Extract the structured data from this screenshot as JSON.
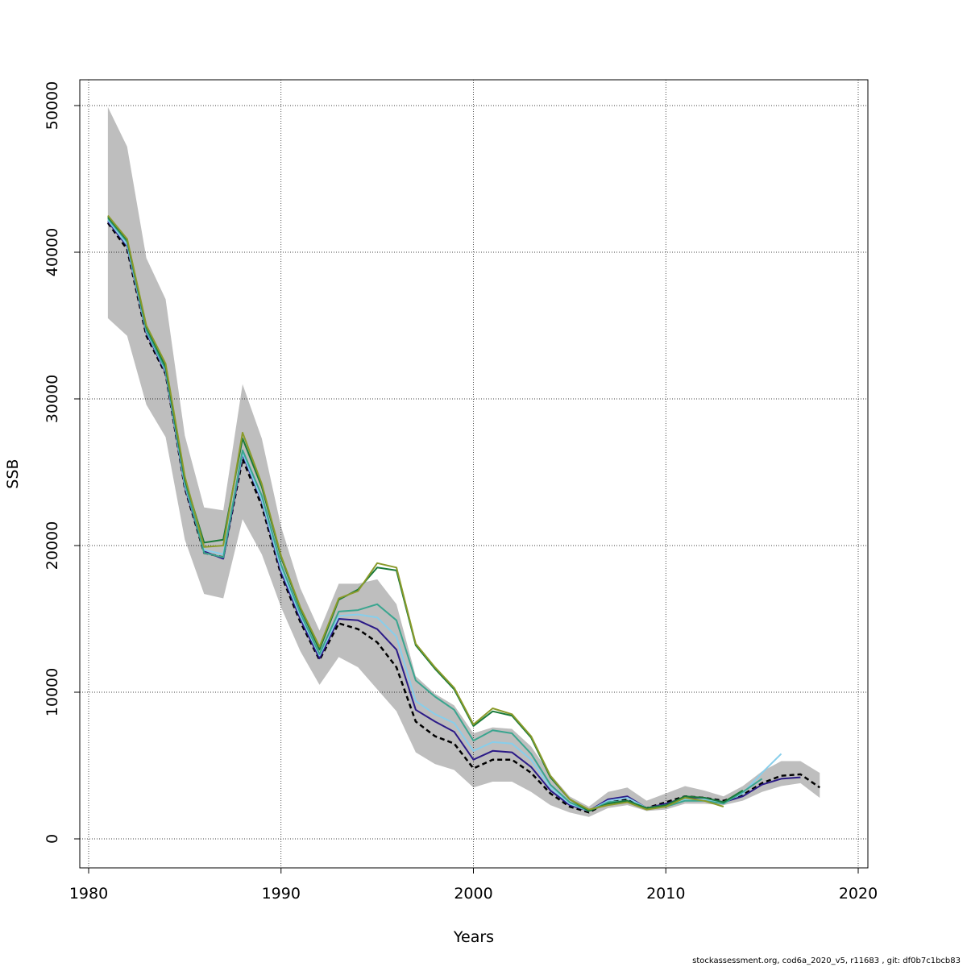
{
  "footer": "stockassessment.org, cod6a_2020_v5, r11683 , git: df0b7c1bcb83",
  "chart_data": {
    "type": "line",
    "title": "",
    "xlabel": "Years",
    "ylabel": "SSB",
    "xlim": [
      1980,
      2020
    ],
    "ylim": [
      0,
      50000
    ],
    "x_ticks": [
      1980,
      1990,
      2000,
      2010,
      2020
    ],
    "y_ticks": [
      0,
      10000,
      20000,
      30000,
      40000,
      50000
    ],
    "x_tick_labels": [
      "1980",
      "1990",
      "2000",
      "2010",
      "2020"
    ],
    "y_tick_labels": [
      "0",
      "10000",
      "20000",
      "30000",
      "40000",
      "50000"
    ],
    "grid": true,
    "legend": "none",
    "confidence_band": {
      "x": [
        1981,
        1982,
        1983,
        1984,
        1985,
        1986,
        1987,
        1988,
        1989,
        1990,
        1991,
        1992,
        1993,
        1994,
        1995,
        1996,
        1997,
        1998,
        1999,
        2000,
        2001,
        2002,
        2003,
        2004,
        2005,
        2006,
        2007,
        2008,
        2009,
        2010,
        2011,
        2012,
        2013,
        2014,
        2015,
        2016,
        2017,
        2018
      ],
      "lower": [
        35500,
        34300,
        29600,
        27400,
        20400,
        16700,
        16400,
        21800,
        19400,
        15800,
        12800,
        10500,
        12400,
        11700,
        10200,
        8700,
        5900,
        5100,
        4700,
        3500,
        3900,
        3900,
        3200,
        2300,
        1800,
        1500,
        2100,
        2300,
        1900,
        2000,
        2400,
        2400,
        2300,
        2600,
        3200,
        3600,
        3800,
        2800
      ],
      "upper": [
        49900,
        47200,
        39600,
        36800,
        27500,
        22600,
        22400,
        31000,
        27300,
        21300,
        17100,
        14200,
        17400,
        17400,
        17700,
        16000,
        11100,
        9900,
        9100,
        7200,
        7600,
        7500,
        6300,
        4400,
        2900,
        2200,
        3200,
        3500,
        2600,
        3100,
        3600,
        3300,
        2900,
        3600,
        4600,
        5300,
        5300,
        4500
      ],
      "color": "#bebebe"
    },
    "series": [
      {
        "x": [
          1981,
          1982,
          1983,
          1984,
          1985,
          1986,
          1987,
          1988,
          1989,
          1990,
          1991,
          1992,
          1993,
          1994,
          1995,
          1996,
          1997,
          1998,
          1999,
          2000,
          2001,
          2002,
          2003,
          2004,
          2005,
          2006,
          2007,
          2008,
          2009,
          2010,
          2011,
          2012,
          2013,
          2014,
          2015,
          2016,
          2017,
          2018
        ],
        "values": [
          42000,
          40200,
          34300,
          31700,
          23900,
          19500,
          19200,
          25900,
          22700,
          18000,
          14800,
          12200,
          14700,
          14300,
          13400,
          11700,
          8000,
          7000,
          6500,
          4800,
          5400,
          5400,
          4500,
          3100,
          2200,
          1800,
          2500,
          2700,
          2100,
          2500,
          2900,
          2800,
          2600,
          3000,
          3800,
          4300,
          4400,
          3500
        ],
        "color": "#000000",
        "dash": "6,4",
        "width": 2.5
      },
      {
        "x": [
          1981,
          1982,
          1983,
          1984,
          1985,
          1986,
          1987,
          1988,
          1989,
          1990,
          1991,
          1992,
          1993,
          1994,
          1995,
          1996,
          1997,
          1998,
          1999,
          2000,
          2001,
          2002,
          2003,
          2004,
          2005,
          2006,
          2007,
          2008,
          2009,
          2010,
          2011,
          2012,
          2013,
          2014,
          2015,
          2016,
          2017
        ],
        "values": [
          42100,
          40400,
          34500,
          31800,
          24000,
          19600,
          19100,
          26200,
          23000,
          18200,
          15000,
          12300,
          15000,
          14900,
          14300,
          12900,
          8800,
          8000,
          7300,
          5400,
          6000,
          5900,
          4900,
          3300,
          2300,
          1900,
          2700,
          2900,
          2100,
          2400,
          2800,
          2800,
          2500,
          2900,
          3700,
          4100,
          4200
        ],
        "color": "#2b1a87",
        "width": 2
      },
      {
        "x": [
          1981,
          1982,
          1983,
          1984,
          1985,
          1986,
          1987,
          1988,
          1989,
          1990,
          1991,
          1992,
          1993,
          1994,
          1995,
          1996,
          1997,
          1998,
          1999,
          2000,
          2001,
          2002,
          2003,
          2004,
          2005,
          2006,
          2007,
          2008,
          2009,
          2010,
          2011,
          2012,
          2013,
          2014,
          2015,
          2016
        ],
        "values": [
          42200,
          40500,
          34600,
          31900,
          24100,
          19700,
          19400,
          26300,
          23100,
          18400,
          15200,
          12500,
          15200,
          15300,
          15100,
          13800,
          9400,
          8500,
          7900,
          6000,
          6600,
          6500,
          5400,
          3500,
          2400,
          1900,
          2600,
          2800,
          2100,
          2300,
          2700,
          2700,
          2500,
          3100,
          4500,
          5800
        ],
        "color": "#87ceeb",
        "width": 2
      },
      {
        "x": [
          1981,
          1982,
          1983,
          1984,
          1985,
          1986,
          1987,
          1988,
          1989,
          1990,
          1991,
          1992,
          1993,
          1994,
          1995,
          1996,
          1997,
          1998,
          1999,
          2000,
          2001,
          2002,
          2003,
          2004,
          2005,
          2006,
          2007,
          2008,
          2009,
          2010,
          2011,
          2012,
          2013,
          2014,
          2015
        ],
        "values": [
          42300,
          40700,
          34700,
          32000,
          24300,
          19500,
          19200,
          26500,
          23400,
          18700,
          15400,
          12600,
          15500,
          15600,
          16000,
          14900,
          10800,
          9700,
          8800,
          6700,
          7400,
          7200,
          5800,
          3700,
          2500,
          1900,
          2500,
          2600,
          2100,
          2200,
          2600,
          2600,
          2400,
          3200,
          4100
        ],
        "color": "#3aa58f",
        "width": 2
      },
      {
        "x": [
          1981,
          1982,
          1983,
          1984,
          1985,
          1986,
          1987,
          1988,
          1989,
          1990,
          1991,
          1992,
          1993,
          1994,
          1995,
          1996,
          1997,
          1998,
          1999,
          2000,
          2001,
          2002,
          2003,
          2004,
          2005,
          2006,
          2007,
          2008,
          2009,
          2010,
          2011,
          2012,
          2013,
          2014
        ],
        "values": [
          42400,
          40800,
          34900,
          32200,
          24500,
          20200,
          20400,
          27300,
          24000,
          19200,
          15700,
          12900,
          16300,
          17000,
          18500,
          18300,
          13200,
          11600,
          10200,
          7700,
          8700,
          8400,
          6900,
          4200,
          2700,
          1900,
          2400,
          2600,
          2100,
          2300,
          2900,
          2800,
          2500,
          3300
        ],
        "color": "#1a7a3a",
        "width": 2
      },
      {
        "x": [
          1981,
          1982,
          1983,
          1984,
          1985,
          1986,
          1987,
          1988,
          1989,
          1990,
          1991,
          1992,
          1993,
          1994,
          1995,
          1996,
          1997,
          1998,
          1999,
          2000,
          2001,
          2002,
          2003,
          2004,
          2005,
          2006,
          2007,
          2008,
          2009,
          2010,
          2011,
          2012,
          2013
        ],
        "values": [
          42500,
          40900,
          35000,
          32400,
          24700,
          19900,
          20000,
          27700,
          24200,
          19300,
          15800,
          13100,
          16400,
          16900,
          18800,
          18500,
          13300,
          11700,
          10300,
          7800,
          8900,
          8500,
          7000,
          4300,
          2700,
          2000,
          2300,
          2500,
          2000,
          2200,
          2800,
          2600,
          2200
        ],
        "color": "#8a9a2a",
        "width": 2
      }
    ]
  }
}
